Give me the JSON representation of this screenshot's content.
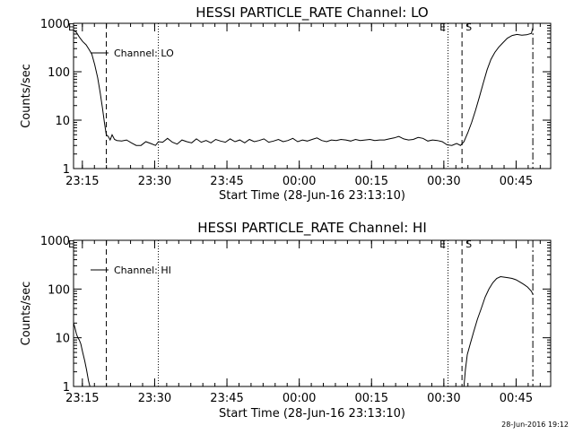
{
  "footer": {
    "timestamp": "28-Jun-2016 19:12"
  },
  "chart_data": [
    {
      "type": "line",
      "title": "HESSI PARTICLE_RATE Channel: LO",
      "xlabel": "Start Time (28-Jun-16 23:13:10)",
      "ylabel": "Counts/sec",
      "x_unit": "minutes after 23:13:10",
      "xlim": [
        0,
        99
      ],
      "ylim": [
        1,
        1000
      ],
      "yscale": "log",
      "x_ticks": [
        {
          "value": 1.83,
          "label": "23:15"
        },
        {
          "value": 16.83,
          "label": "23:30"
        },
        {
          "value": 31.83,
          "label": "23:45"
        },
        {
          "value": 46.83,
          "label": "00:00"
        },
        {
          "value": 61.83,
          "label": "00:15"
        },
        {
          "value": 76.83,
          "label": "00:30"
        },
        {
          "value": 91.83,
          "label": "00:45"
        }
      ],
      "y_ticks": [
        {
          "value": 1,
          "label": "1"
        },
        {
          "value": 10,
          "label": "10"
        },
        {
          "value": 100,
          "label": "100"
        },
        {
          "value": 1000,
          "label": "1000"
        }
      ],
      "grid": false,
      "legend": {
        "entry": "Channel: LO",
        "placement": "top-left"
      },
      "markers": [
        {
          "x": 0,
          "style": "dash-dot",
          "label": "E"
        },
        {
          "x": 6.8,
          "style": "dashed",
          "label": ""
        },
        {
          "x": 17.6,
          "style": "dotted",
          "label": ""
        },
        {
          "x": 77.7,
          "style": "dotted",
          "label": "E"
        },
        {
          "x": 80.6,
          "style": "dashed",
          "label": "S"
        },
        {
          "x": 95.3,
          "style": "dash-dot",
          "label": ""
        }
      ],
      "series": [
        {
          "name": "Channel: LO",
          "x": [
            0,
            0.6,
            1.2,
            1.9,
            2.6,
            3.2,
            3.8,
            4.4,
            5.0,
            5.5,
            6.0,
            6.4,
            6.8,
            7.2,
            7.6,
            8.0,
            8.5,
            9.0,
            10,
            11,
            12,
            13,
            14,
            15,
            16,
            17,
            17.6,
            18.5,
            19.5,
            20.5,
            21.5,
            22.5,
            23.5,
            24.5,
            25.5,
            26.5,
            27.5,
            28.5,
            29.5,
            30.5,
            31.5,
            32.5,
            33.5,
            34.5,
            35.5,
            36.5,
            37.5,
            38.5,
            39.5,
            40.5,
            41.5,
            42.5,
            43.5,
            44.5,
            45.5,
            46.5,
            47.5,
            48.5,
            49.5,
            50.5,
            51.5,
            52.5,
            53.5,
            54.5,
            55.5,
            56.5,
            57.5,
            58.5,
            59.5,
            60.5,
            61.5,
            62.5,
            63.5,
            64.5,
            65.5,
            66.5,
            67.5,
            68.5,
            69.5,
            70.5,
            71.5,
            72.5,
            73.5,
            74.5,
            75.5,
            76.5,
            77.5,
            78.5,
            79.5,
            80.3,
            81.0,
            81.8,
            82.6,
            83.4,
            84.2,
            85.0,
            85.8,
            86.6,
            87.4,
            88.2,
            89.0,
            90.0,
            91.0,
            92.0,
            93.0,
            94.0,
            95.0,
            95.3
          ],
          "y": [
            720,
            650,
            520,
            420,
            360,
            290,
            230,
            140,
            75,
            38,
            18,
            9,
            5,
            4.6,
            3.9,
            5.0,
            4.0,
            3.8,
            3.7,
            3.9,
            3.4,
            3.0,
            3.0,
            3.6,
            3.3,
            3.0,
            3.6,
            3.5,
            4.2,
            3.5,
            3.2,
            3.9,
            3.6,
            3.4,
            4.1,
            3.5,
            3.8,
            3.4,
            4.0,
            3.7,
            3.5,
            4.1,
            3.6,
            3.9,
            3.4,
            4.0,
            3.6,
            3.8,
            4.1,
            3.5,
            3.7,
            4.0,
            3.6,
            3.8,
            4.2,
            3.6,
            3.9,
            3.7,
            4.0,
            4.3,
            3.8,
            3.6,
            3.9,
            3.8,
            4.0,
            3.9,
            3.7,
            4.0,
            3.8,
            3.9,
            4.0,
            3.8,
            3.9,
            3.9,
            4.1,
            4.3,
            4.6,
            4.1,
            3.9,
            4.0,
            4.4,
            4.2,
            3.7,
            3.9,
            3.8,
            3.6,
            3.1,
            3.0,
            3.3,
            3.0,
            3.6,
            5.5,
            9,
            16,
            30,
            58,
            110,
            180,
            250,
            320,
            390,
            490,
            560,
            590,
            570,
            580,
            620,
            810
          ]
        }
      ]
    },
    {
      "type": "line",
      "title": "HESSI PARTICLE_RATE Channel: HI",
      "xlabel": "Start Time (28-Jun-16 23:13:10)",
      "ylabel": "Counts/sec",
      "x_unit": "minutes after 23:13:10",
      "xlim": [
        0,
        99
      ],
      "ylim": [
        1,
        1000
      ],
      "yscale": "log",
      "x_ticks": [
        {
          "value": 1.83,
          "label": "23:15"
        },
        {
          "value": 16.83,
          "label": "23:30"
        },
        {
          "value": 31.83,
          "label": "23:45"
        },
        {
          "value": 46.83,
          "label": "00:00"
        },
        {
          "value": 61.83,
          "label": "00:15"
        },
        {
          "value": 76.83,
          "label": "00:30"
        },
        {
          "value": 91.83,
          "label": "00:45"
        }
      ],
      "y_ticks": [
        {
          "value": 1,
          "label": "1"
        },
        {
          "value": 10,
          "label": "10"
        },
        {
          "value": 100,
          "label": "100"
        },
        {
          "value": 1000,
          "label": "1000"
        }
      ],
      "grid": false,
      "legend": {
        "entry": "Channel: HI",
        "placement": "top-left"
      },
      "markers": [
        {
          "x": 0,
          "style": "dash-dot",
          "label": "E"
        },
        {
          "x": 6.8,
          "style": "dashed",
          "label": ""
        },
        {
          "x": 17.6,
          "style": "dotted",
          "label": ""
        },
        {
          "x": 77.7,
          "style": "dotted",
          "label": "E"
        },
        {
          "x": 80.6,
          "style": "dashed",
          "label": "S"
        },
        {
          "x": 95.3,
          "style": "dash-dot",
          "label": ""
        }
      ],
      "series": [
        {
          "name": "Channel: HI",
          "segments": [
            {
              "x": [
                0,
                0.3,
                0.6,
                0.9,
                1.2,
                1.5,
                1.9,
                2.3,
                2.7,
                3.1,
                3.4
              ],
              "y": [
                20,
                16,
                12,
                10,
                9,
                7.5,
                5,
                3.4,
                2.2,
                1.3,
                1.0
              ]
            },
            {
              "x": [
                81.0,
                81.3,
                81.7,
                82.3,
                83.0,
                83.8,
                84.6,
                85.4,
                86.2,
                87.0,
                87.8,
                88.6,
                89.4,
                90.2,
                91.0,
                91.8,
                92.6,
                93.4,
                94.2,
                95.0,
                95.3
              ],
              "y": [
                1.0,
                2.2,
                4.5,
                7.5,
                13,
                24,
                40,
                68,
                100,
                135,
                165,
                180,
                175,
                170,
                165,
                155,
                140,
                125,
                110,
                90,
                78
              ]
            }
          ]
        }
      ]
    }
  ]
}
